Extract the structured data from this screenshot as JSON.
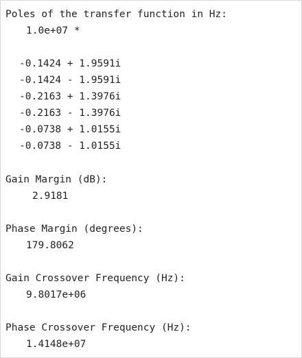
{
  "poles": {
    "heading": "Poles of the transfer function in Hz:",
    "scale": "1.0e+07 *",
    "values": [
      "-0.1424 + 1.9591i",
      "-0.1424 - 1.9591i",
      "-0.2163 + 1.3976i",
      "-0.2163 - 1.3976i",
      "-0.0738 + 1.0155i",
      "-0.0738 - 1.0155i"
    ]
  },
  "gain_margin": {
    "heading": "Gain Margin (dB):",
    "value": "2.9181"
  },
  "phase_margin": {
    "heading": "Phase Margin (degrees):",
    "value": "179.8062"
  },
  "gain_crossover": {
    "heading": "Gain Crossover Frequency (Hz):",
    "value": "9.8017e+06"
  },
  "phase_crossover": {
    "heading": "Phase Crossover Frequency (Hz):",
    "value": "1.4148e+07"
  }
}
